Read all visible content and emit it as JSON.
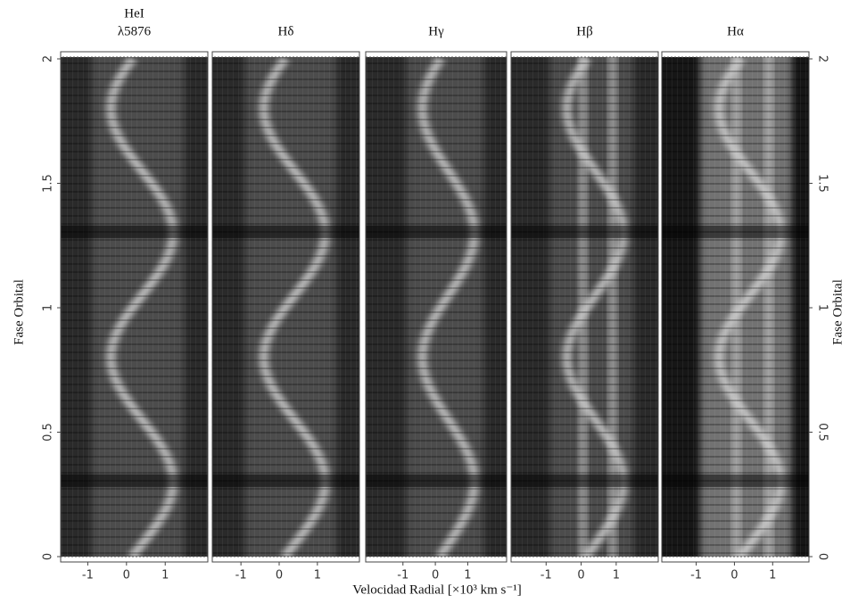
{
  "chart_data": {
    "type": "trailed-spectra",
    "xlabel": "Velocidad Radial    [×10³ km s⁻¹]",
    "ylabel": "Fase Orbital",
    "ylim": [
      0,
      2
    ],
    "yticks": [
      0,
      0.5,
      1,
      1.5,
      2
    ],
    "panels": [
      {
        "title": [
          "HeI",
          "λ5876"
        ],
        "xlim": [
          -1.7,
          2.1
        ],
        "xticks": [
          -1,
          0,
          1
        ]
      },
      {
        "title": [
          "Hδ"
        ],
        "xlim": [
          -1.75,
          2.1
        ],
        "xticks": [
          -1,
          0,
          1
        ]
      },
      {
        "title": [
          "Hγ"
        ],
        "xlim": [
          -2.15,
          2.2
        ],
        "xticks": [
          -1,
          0,
          1
        ]
      },
      {
        "title": [
          "Hβ"
        ],
        "xlim": [
          -2.0,
          2.2
        ],
        "xticks": [
          -1,
          0,
          1
        ]
      },
      {
        "title": [
          "Hα"
        ],
        "xlim": [
          -1.9,
          1.95
        ],
        "xticks": [
          -1,
          0,
          1
        ]
      }
    ]
  }
}
